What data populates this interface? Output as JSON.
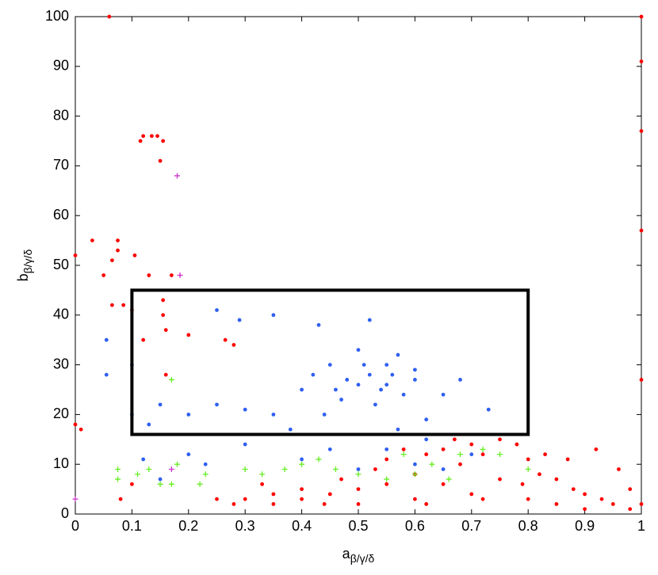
{
  "chart_data": {
    "type": "scatter",
    "xlabel": {
      "base": "a",
      "sub": "β/γ/δ"
    },
    "ylabel": {
      "base": "b",
      "sub": "β/γ/δ"
    },
    "xlim": [
      0,
      1
    ],
    "ylim": [
      0,
      100
    ],
    "xticks": [
      0,
      0.1,
      0.2,
      0.3,
      0.4,
      0.5,
      0.6,
      0.7,
      0.8,
      0.9,
      1
    ],
    "yticks": [
      0,
      10,
      20,
      30,
      40,
      50,
      60,
      70,
      80,
      90,
      100
    ],
    "grid": false,
    "box": {
      "x": [
        0.1,
        0.8
      ],
      "y": [
        16,
        45
      ],
      "color": "#000000"
    },
    "series": [
      {
        "color": "#ff0000",
        "marker": "dot",
        "x": [
          0.06,
          1,
          1,
          1,
          1,
          1,
          0,
          0,
          0.01,
          0.12,
          0.115,
          0.135,
          0.145,
          0.155,
          0.15,
          0.03,
          0.065,
          0.075,
          0.075,
          0.05,
          0.105,
          0.13,
          0.17,
          0.065,
          0.085,
          0.1,
          0.155,
          0.155,
          0.12,
          0.16,
          0.2,
          0.265,
          0.28,
          0.16,
          0.08,
          0.1,
          0.25,
          0.3,
          0.35,
          0.4,
          0.45,
          0.5,
          0.55,
          0.6,
          0.62,
          0.65,
          0.68,
          0.7,
          0.72,
          0.75,
          0.78,
          0.8,
          0.82,
          0.85,
          0.88,
          0.9,
          0.93,
          0.95,
          0.98,
          1,
          0.6,
          0.7,
          0.8,
          0.5,
          0.4,
          0.35,
          0.65,
          0.75,
          0.72,
          0.85,
          0.9,
          0.55,
          0.58,
          0.67,
          0.83,
          0.79,
          0.62,
          0.47,
          0.53,
          0.44,
          0.92,
          0.96,
          0.98,
          0.33,
          0.28,
          0.87
        ],
        "y": [
          100,
          100,
          91,
          77,
          57,
          27,
          52,
          18,
          17,
          76,
          75,
          76,
          76,
          75,
          71,
          55,
          51,
          55,
          53,
          48,
          52,
          48,
          48,
          42,
          42,
          41,
          43,
          40,
          35,
          37,
          36,
          35,
          34,
          28,
          3,
          6,
          3,
          3,
          4,
          3,
          4,
          5,
          6,
          8,
          12,
          13,
          10,
          14,
          12,
          15,
          14,
          11,
          8,
          7,
          5,
          4,
          3,
          2,
          1,
          2,
          3,
          4,
          3,
          2,
          5,
          2,
          6,
          7,
          3,
          2,
          1,
          11,
          13,
          15,
          12,
          6,
          2,
          7,
          9,
          2,
          13,
          9,
          5,
          6,
          2,
          11
        ]
      },
      {
        "color": "#2f5ff0",
        "marker": "dot",
        "x": [
          0.055,
          0.055,
          0.1,
          0.1,
          0.13,
          0.15,
          0.2,
          0.25,
          0.3,
          0.35,
          0.25,
          0.29,
          0.35,
          0.43,
          0.52,
          0.4,
          0.42,
          0.45,
          0.48,
          0.5,
          0.52,
          0.55,
          0.57,
          0.6,
          0.58,
          0.53,
          0.47,
          0.44,
          0.5,
          0.6,
          0.65,
          0.68,
          0.73,
          0.62,
          0.38,
          0.3,
          0.23,
          0.15,
          0.12,
          0.2,
          0.55,
          0.6,
          0.65,
          0.7,
          0.62,
          0.57,
          0.45,
          0.4,
          0.5,
          0.55,
          0.46,
          0.54,
          0.56,
          0.51
        ],
        "y": [
          35,
          28,
          30,
          20,
          18,
          22,
          20,
          22,
          21,
          20,
          41,
          39,
          40,
          38,
          39,
          25,
          28,
          30,
          27,
          26,
          28,
          30,
          32,
          29,
          24,
          22,
          23,
          20,
          33,
          27,
          24,
          27,
          21,
          19,
          17,
          14,
          10,
          7,
          11,
          12,
          13,
          10,
          9,
          12,
          15,
          17,
          13,
          11,
          9,
          26,
          25,
          25,
          28,
          30
        ]
      },
      {
        "color": "#66ee22",
        "marker": "plus",
        "x": [
          0.075,
          0.075,
          0.11,
          0.13,
          0.15,
          0.17,
          0.18,
          0.22,
          0.23,
          0.3,
          0.33,
          0.37,
          0.4,
          0.43,
          0.46,
          0.5,
          0.55,
          0.6,
          0.63,
          0.68,
          0.72,
          0.75,
          0.8,
          0.58,
          0.66,
          0.17
        ],
        "y": [
          9,
          7,
          8,
          9,
          6,
          6,
          10,
          6,
          8,
          9,
          8,
          9,
          10,
          11,
          9,
          8,
          7,
          8,
          10,
          12,
          13,
          12,
          9,
          12,
          7,
          27
        ]
      },
      {
        "color": "#cc33cc",
        "marker": "plus",
        "x": [
          0.18,
          0.185,
          0.17,
          0
        ],
        "y": [
          68,
          48,
          9,
          3
        ]
      }
    ]
  }
}
